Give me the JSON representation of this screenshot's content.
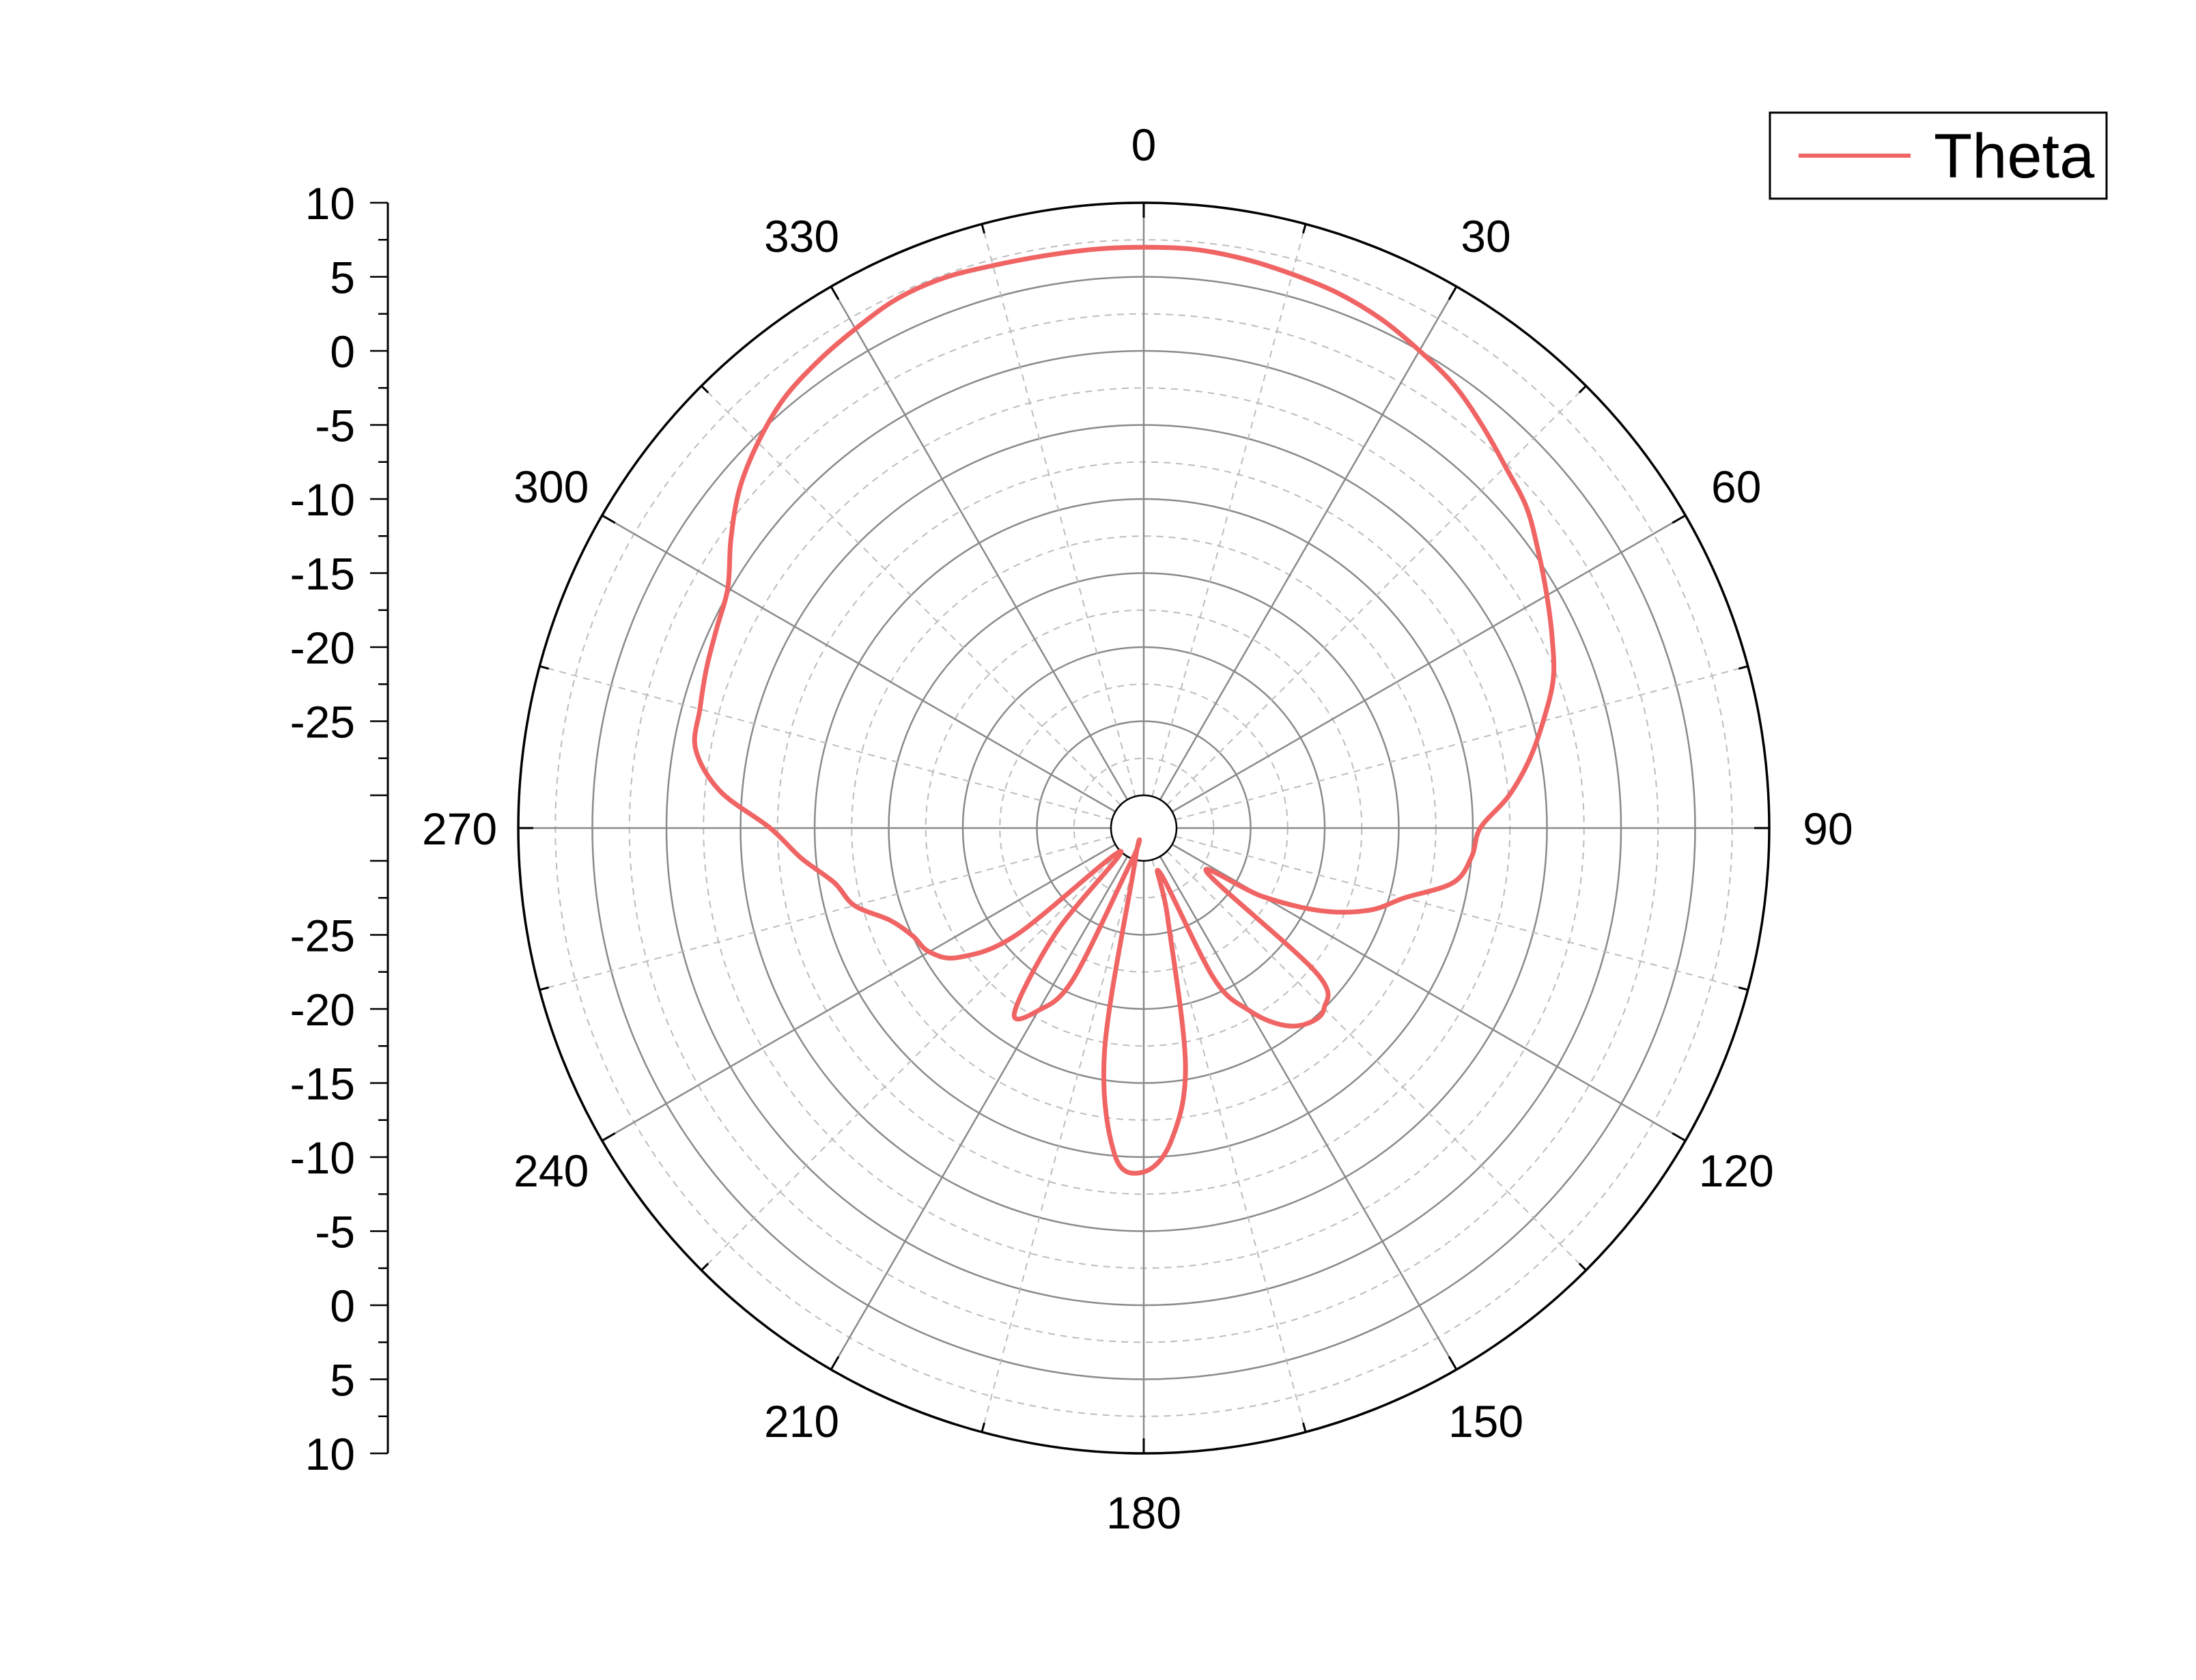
{
  "chart_data": {
    "type": "line",
    "coordinate_system": "polar",
    "title": "",
    "series": [
      {
        "name": "Theta",
        "color": "#f06464",
        "angles_deg": [
          0,
          5,
          10,
          15,
          20,
          25,
          30,
          35,
          40,
          45,
          50,
          55,
          60,
          65,
          70,
          75,
          80,
          85,
          90,
          95,
          100,
          105,
          110,
          115,
          120,
          125,
          130,
          135,
          140,
          145,
          150,
          155,
          160,
          165,
          170,
          175,
          180,
          185,
          190,
          195,
          200,
          205,
          210,
          215,
          220,
          225,
          230,
          235,
          240,
          245,
          250,
          255,
          260,
          265,
          270,
          275,
          280,
          285,
          290,
          295,
          300,
          305,
          310,
          315,
          320,
          325,
          330,
          335,
          340,
          345,
          350,
          355
        ],
        "values": [
          7,
          7,
          6.8,
          6.5,
          6.2,
          5.7,
          5,
          4.3,
          3.3,
          2.3,
          1.5,
          0.3,
          -0.8,
          -1.8,
          -2.8,
          -4.3,
          -5.8,
          -7.5,
          -9.5,
          -10,
          -11,
          -14,
          -16,
          -19,
          -23,
          -27,
          -17,
          -15,
          -15,
          -16,
          -18,
          -21,
          -29,
          -26,
          -16,
          -11,
          -9,
          -10,
          -17,
          -31,
          -30,
          -21,
          -18,
          -17,
          -23,
          -31,
          -21,
          -17,
          -15.5,
          -15,
          -14,
          -12,
          -11,
          -9,
          -7,
          -3.5,
          -1.5,
          -1.2,
          -0.8,
          -0.4,
          0.2,
          1.8,
          3.4,
          4.6,
          5.6,
          6.2,
          6.7,
          7.2,
          7.3,
          7.1,
          7,
          7
        ]
      }
    ],
    "angular_axis": {
      "direction": "clockwise",
      "zero_location": "top",
      "tick_labels": [
        "0",
        "30",
        "60",
        "90",
        "120",
        "150",
        "180",
        "210",
        "240",
        "270",
        "300",
        "330"
      ]
    },
    "radial_axis": {
      "range": [
        -30,
        10
      ],
      "major_step": 5,
      "tick_labels_upper": [
        "10",
        "5",
        "0",
        "-5",
        "-10",
        "-15",
        "-20",
        "-25"
      ],
      "tick_labels_lower": [
        "-25",
        "-20",
        "-15",
        "-10",
        "-5",
        "0",
        "5",
        "10"
      ]
    },
    "grid": true,
    "legend": {
      "position": "top-right",
      "entries": [
        "Theta"
      ]
    }
  }
}
